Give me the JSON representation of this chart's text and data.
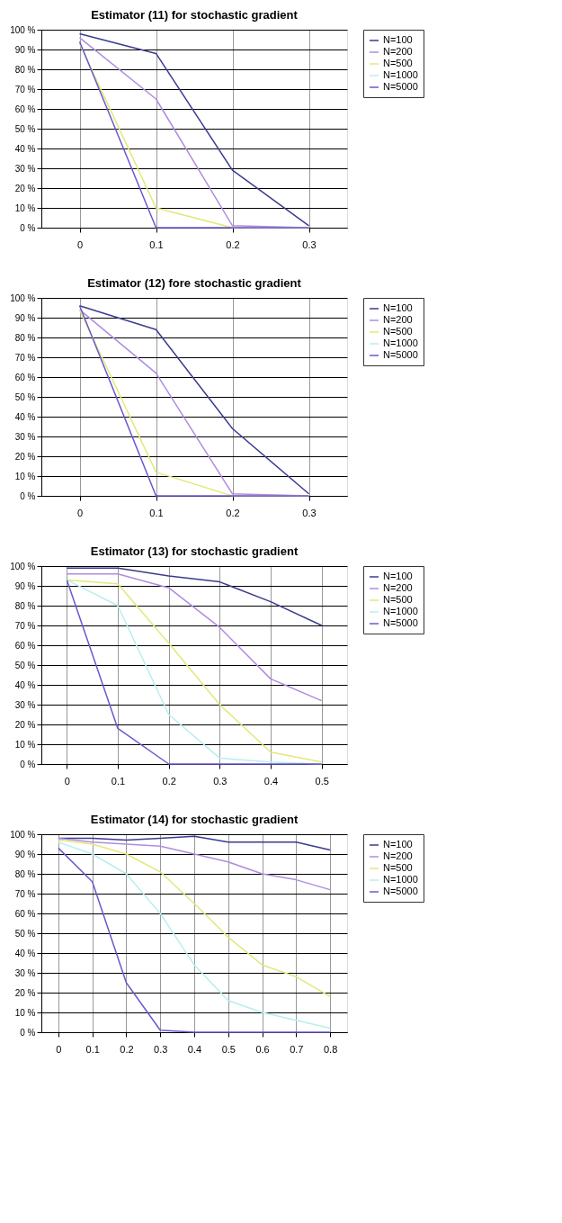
{
  "chart_data": [
    {
      "type": "line",
      "title": "Estimator (11) for stochastic gradient",
      "categories": [
        "0",
        "0.1",
        "0.2",
        "0.3"
      ],
      "ylim": [
        0,
        100
      ],
      "yticks": [
        {
          "value": 0,
          "label": "0 %"
        },
        {
          "value": 10,
          "label": "10 %"
        },
        {
          "value": 20,
          "label": "20 %"
        },
        {
          "value": 30,
          "label": "30 %"
        },
        {
          "value": 40,
          "label": "40 %"
        },
        {
          "value": 50,
          "label": "50 %"
        },
        {
          "value": 60,
          "label": "60 %"
        },
        {
          "value": 70,
          "label": "70 %"
        },
        {
          "value": 80,
          "label": "80 %"
        },
        {
          "value": 90,
          "label": "90 %"
        },
        {
          "value": 100,
          "label": "100 %"
        }
      ],
      "grid": true,
      "legend": "right",
      "marker": "none",
      "line_style": "solid",
      "series": [
        {
          "name": "N=100",
          "color": "#3b3b8f",
          "values": [
            98,
            88,
            29,
            1
          ]
        },
        {
          "name": "N=200",
          "color": "#b08ce0",
          "values": [
            96,
            65,
            1,
            0
          ]
        },
        {
          "name": "N=500",
          "color": "#e3e878",
          "values": [
            93,
            10,
            0,
            0
          ]
        },
        {
          "name": "N=1000",
          "color": "#b8eef0",
          "values": [
            null,
            null,
            null,
            null
          ]
        },
        {
          "name": "N=5000",
          "color": "#6a58d0",
          "values": [
            94,
            0,
            0,
            0
          ]
        }
      ]
    },
    {
      "type": "line",
      "title": "Estimator (12) fore stochastic gradient",
      "categories": [
        "0",
        "0.1",
        "0.2",
        "0.3"
      ],
      "ylim": [
        0,
        100
      ],
      "yticks": [
        {
          "value": 0,
          "label": "0 %"
        },
        {
          "value": 10,
          "label": "10 %"
        },
        {
          "value": 20,
          "label": "20 %"
        },
        {
          "value": 30,
          "label": "30 %"
        },
        {
          "value": 40,
          "label": "40 %"
        },
        {
          "value": 50,
          "label": "50 %"
        },
        {
          "value": 60,
          "label": "60 %"
        },
        {
          "value": 70,
          "label": "70 %"
        },
        {
          "value": 80,
          "label": "80 %"
        },
        {
          "value": 90,
          "label": "90 %"
        },
        {
          "value": 100,
          "label": "100 %"
        }
      ],
      "grid": true,
      "legend": "right",
      "marker": "none",
      "line_style": "solid",
      "series": [
        {
          "name": "N=100",
          "color": "#3b3b8f",
          "values": [
            96,
            84,
            34,
            1
          ]
        },
        {
          "name": "N=200",
          "color": "#b08ce0",
          "values": [
            94,
            62,
            1,
            0
          ]
        },
        {
          "name": "N=500",
          "color": "#e3e878",
          "values": [
            94,
            12,
            0,
            0
          ]
        },
        {
          "name": "N=1000",
          "color": "#b8eef0",
          "values": [
            null,
            null,
            null,
            null
          ]
        },
        {
          "name": "N=5000",
          "color": "#6a58d0",
          "values": [
            96,
            0,
            0,
            0
          ]
        }
      ]
    },
    {
      "type": "line",
      "title": "Estimator (13) for stochastic gradient",
      "categories": [
        "0",
        "0.1",
        "0.2",
        "0.3",
        "0.4",
        "0.5"
      ],
      "ylim": [
        0,
        100
      ],
      "yticks": [
        {
          "value": 0,
          "label": "0 %"
        },
        {
          "value": 10,
          "label": "10 %"
        },
        {
          "value": 20,
          "label": "20 %"
        },
        {
          "value": 30,
          "label": "30 %"
        },
        {
          "value": 40,
          "label": "40 %"
        },
        {
          "value": 50,
          "label": "50 %"
        },
        {
          "value": 60,
          "label": "60 %"
        },
        {
          "value": 70,
          "label": "70 %"
        },
        {
          "value": 80,
          "label": "80 %"
        },
        {
          "value": 90,
          "label": "90 %"
        },
        {
          "value": 100,
          "label": "100 %"
        }
      ],
      "grid": true,
      "legend": "right",
      "marker": "none",
      "line_style": "solid",
      "series": [
        {
          "name": "N=100",
          "color": "#3b3b8f",
          "values": [
            99,
            99,
            95,
            92,
            82,
            70
          ]
        },
        {
          "name": "N=200",
          "color": "#b08ce0",
          "values": [
            96,
            96,
            89,
            69,
            43,
            32
          ]
        },
        {
          "name": "N=500",
          "color": "#e3e878",
          "values": [
            93,
            91,
            61,
            30,
            6,
            1
          ]
        },
        {
          "name": "N=1000",
          "color": "#b8eef0",
          "values": [
            93,
            80,
            25,
            3,
            1,
            0
          ]
        },
        {
          "name": "N=5000",
          "color": "#6a58d0",
          "values": [
            93,
            18,
            0,
            0,
            0,
            0
          ]
        }
      ]
    },
    {
      "type": "line",
      "title": "Estimator (14) for stochastic gradient",
      "categories": [
        "0",
        "0.1",
        "0.2",
        "0.3",
        "0.4",
        "0.5",
        "0.6",
        "0.7",
        "0.8"
      ],
      "ylim": [
        0,
        100
      ],
      "yticks": [
        {
          "value": 0,
          "label": "0 %"
        },
        {
          "value": 10,
          "label": "10 %"
        },
        {
          "value": 20,
          "label": "20 %"
        },
        {
          "value": 30,
          "label": "30 %"
        },
        {
          "value": 40,
          "label": "40 %"
        },
        {
          "value": 50,
          "label": "50 %"
        },
        {
          "value": 60,
          "label": "60 %"
        },
        {
          "value": 70,
          "label": "70 %"
        },
        {
          "value": 80,
          "label": "80 %"
        },
        {
          "value": 90,
          "label": "90 %"
        },
        {
          "value": 100,
          "label": "100 %"
        }
      ],
      "grid": true,
      "legend": "right",
      "marker": "none",
      "line_style": "solid",
      "series": [
        {
          "name": "N=100",
          "color": "#3b3b8f",
          "values": [
            98,
            98,
            97,
            98,
            99,
            96,
            96,
            96,
            92
          ]
        },
        {
          "name": "N=200",
          "color": "#b08ce0",
          "values": [
            98,
            96,
            95,
            94,
            90,
            86,
            80,
            77,
            72
          ]
        },
        {
          "name": "N=500",
          "color": "#e3e878",
          "values": [
            97,
            95,
            90,
            81,
            65,
            48,
            34,
            28,
            18
          ]
        },
        {
          "name": "N=1000",
          "color": "#b8eef0",
          "values": [
            96,
            90,
            80,
            60,
            34,
            16,
            10,
            6,
            2
          ]
        },
        {
          "name": "N=5000",
          "color": "#6a58d0",
          "values": [
            93,
            76,
            25,
            1,
            0,
            0,
            0,
            0,
            0
          ]
        }
      ]
    }
  ]
}
